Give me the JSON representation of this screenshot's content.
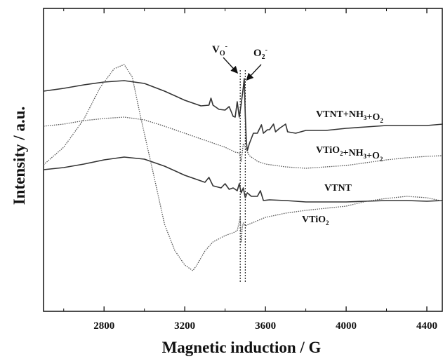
{
  "chart_data": {
    "type": "line",
    "title": "",
    "xlabel": "Magnetic induction / G",
    "ylabel": "Intensity  /  a.u.",
    "xlim": [
      2500,
      4480
    ],
    "x_ticks": [
      2800,
      3200,
      3600,
      4000,
      4400
    ],
    "x_tick_labels": [
      "2800",
      "3200",
      "3600",
      "4000",
      "4400"
    ],
    "y_ticks": [],
    "grid": false,
    "legend": "inline labels to the right of each curve",
    "series": [
      {
        "name": "VTNT+NH3+O2",
        "label_main": "VTNT+NH",
        "label_parts": [
          {
            "text": "VTNT+NH",
            "sub": false
          },
          {
            "text": "3",
            "sub": true
          },
          {
            "text": "+O",
            "sub": false
          },
          {
            "text": "2",
            "sub": true
          }
        ],
        "style": "solid",
        "color": "#333333",
        "points": [
          [
            2500,
            130
          ],
          [
            2600,
            126
          ],
          [
            2700,
            121
          ],
          [
            2800,
            117
          ],
          [
            2900,
            115
          ],
          [
            3000,
            119
          ],
          [
            3100,
            130
          ],
          [
            3200,
            143
          ],
          [
            3280,
            151
          ],
          [
            3320,
            150
          ],
          [
            3330,
            140
          ],
          [
            3340,
            150
          ],
          [
            3370,
            156
          ],
          [
            3400,
            157
          ],
          [
            3420,
            152
          ],
          [
            3440,
            166
          ],
          [
            3450,
            167
          ],
          [
            3460,
            145
          ],
          [
            3470,
            167
          ],
          [
            3480,
            148
          ],
          [
            3490,
            125
          ],
          [
            3495,
            112
          ],
          [
            3500,
            165
          ],
          [
            3505,
            200
          ],
          [
            3510,
            215
          ],
          [
            3520,
            205
          ],
          [
            3540,
            190
          ],
          [
            3560,
            190
          ],
          [
            3580,
            178
          ],
          [
            3590,
            190
          ],
          [
            3610,
            185
          ],
          [
            3620,
            185
          ],
          [
            3640,
            177
          ],
          [
            3650,
            188
          ],
          [
            3670,
            183
          ],
          [
            3700,
            177
          ],
          [
            3710,
            188
          ],
          [
            3750,
            190
          ],
          [
            3800,
            186
          ],
          [
            3900,
            186
          ],
          [
            4000,
            183
          ],
          [
            4100,
            181
          ],
          [
            4200,
            179
          ],
          [
            4300,
            179
          ],
          [
            4400,
            179
          ],
          [
            4480,
            177
          ]
        ]
      },
      {
        "name": "VTiO2+NH3+O2",
        "label_parts": [
          {
            "text": "VTiO",
            "sub": false
          },
          {
            "text": "2",
            "sub": true
          },
          {
            "text": "+NH",
            "sub": false
          },
          {
            "text": "3",
            "sub": true
          },
          {
            "text": "+O",
            "sub": false
          },
          {
            "text": "2",
            "sub": true
          }
        ],
        "style": "dotted",
        "color": "#555555",
        "points": [
          [
            2500,
            180
          ],
          [
            2600,
            177
          ],
          [
            2700,
            172
          ],
          [
            2800,
            169
          ],
          [
            2900,
            167
          ],
          [
            3000,
            171
          ],
          [
            3100,
            180
          ],
          [
            3200,
            190
          ],
          [
            3300,
            200
          ],
          [
            3400,
            210
          ],
          [
            3450,
            217
          ],
          [
            3470,
            218
          ],
          [
            3480,
            230
          ],
          [
            3490,
            205
          ],
          [
            3500,
            210
          ],
          [
            3520,
            222
          ],
          [
            3560,
            230
          ],
          [
            3600,
            234
          ],
          [
            3700,
            238
          ],
          [
            3800,
            240
          ],
          [
            3900,
            238
          ],
          [
            4000,
            236
          ],
          [
            4100,
            232
          ],
          [
            4200,
            228
          ],
          [
            4300,
            225
          ],
          [
            4400,
            223
          ],
          [
            4480,
            222
          ]
        ]
      },
      {
        "name": "VTNT",
        "label_parts": [
          {
            "text": "VTNT",
            "sub": false
          }
        ],
        "style": "solid",
        "color": "#333333",
        "points": [
          [
            2500,
            242
          ],
          [
            2600,
            239
          ],
          [
            2700,
            234
          ],
          [
            2800,
            228
          ],
          [
            2900,
            224
          ],
          [
            3000,
            227
          ],
          [
            3100,
            237
          ],
          [
            3200,
            250
          ],
          [
            3300,
            260
          ],
          [
            3320,
            253
          ],
          [
            3340,
            265
          ],
          [
            3380,
            268
          ],
          [
            3400,
            262
          ],
          [
            3420,
            270
          ],
          [
            3440,
            268
          ],
          [
            3460,
            272
          ],
          [
            3470,
            262
          ],
          [
            3480,
            275
          ],
          [
            3490,
            268
          ],
          [
            3500,
            282
          ],
          [
            3510,
            275
          ],
          [
            3530,
            280
          ],
          [
            3560,
            280
          ],
          [
            3575,
            272
          ],
          [
            3590,
            286
          ],
          [
            3620,
            285
          ],
          [
            3700,
            286
          ],
          [
            3800,
            288
          ],
          [
            3900,
            288
          ],
          [
            4000,
            288
          ],
          [
            4100,
            287
          ],
          [
            4200,
            286
          ],
          [
            4300,
            286
          ],
          [
            4400,
            287
          ],
          [
            4480,
            286
          ]
        ]
      },
      {
        "name": "VTiO2",
        "label_parts": [
          {
            "text": "VTiO",
            "sub": false
          },
          {
            "text": "2",
            "sub": true
          }
        ],
        "style": "dotted",
        "color": "#555555",
        "points": [
          [
            2500,
            235
          ],
          [
            2600,
            210
          ],
          [
            2700,
            170
          ],
          [
            2780,
            125
          ],
          [
            2850,
            98
          ],
          [
            2900,
            92
          ],
          [
            2940,
            110
          ],
          [
            2980,
            165
          ],
          [
            3050,
            255
          ],
          [
            3100,
            320
          ],
          [
            3150,
            357
          ],
          [
            3200,
            378
          ],
          [
            3240,
            386
          ],
          [
            3260,
            378
          ],
          [
            3300,
            358
          ],
          [
            3340,
            345
          ],
          [
            3400,
            336
          ],
          [
            3440,
            332
          ],
          [
            3460,
            329
          ],
          [
            3475,
            310
          ],
          [
            3480,
            345
          ],
          [
            3485,
            325
          ],
          [
            3490,
            318
          ],
          [
            3500,
            322
          ],
          [
            3550,
            316
          ],
          [
            3600,
            310
          ],
          [
            3700,
            304
          ],
          [
            3800,
            300
          ],
          [
            3900,
            297
          ],
          [
            4000,
            294
          ],
          [
            4100,
            287
          ],
          [
            4200,
            283
          ],
          [
            4300,
            280
          ],
          [
            4400,
            282
          ],
          [
            4480,
            287
          ]
        ]
      }
    ],
    "annotations": [
      {
        "label_parts": [
          {
            "text": "V",
            "sub": false
          },
          {
            "text": "O",
            "sub": true
          },
          {
            "text": "-",
            "sup": true
          }
        ],
        "target_x": 3475
      },
      {
        "label_parts": [
          {
            "text": "O",
            "sub": false
          },
          {
            "text": "2",
            "sub": true
          },
          {
            "text": "-",
            "sup": true
          }
        ],
        "target_x": 3500
      }
    ],
    "markers": [
      {
        "type": "vertical-dotted-line",
        "x": 3475
      },
      {
        "type": "vertical-dotted-line",
        "x": 3500
      }
    ]
  }
}
